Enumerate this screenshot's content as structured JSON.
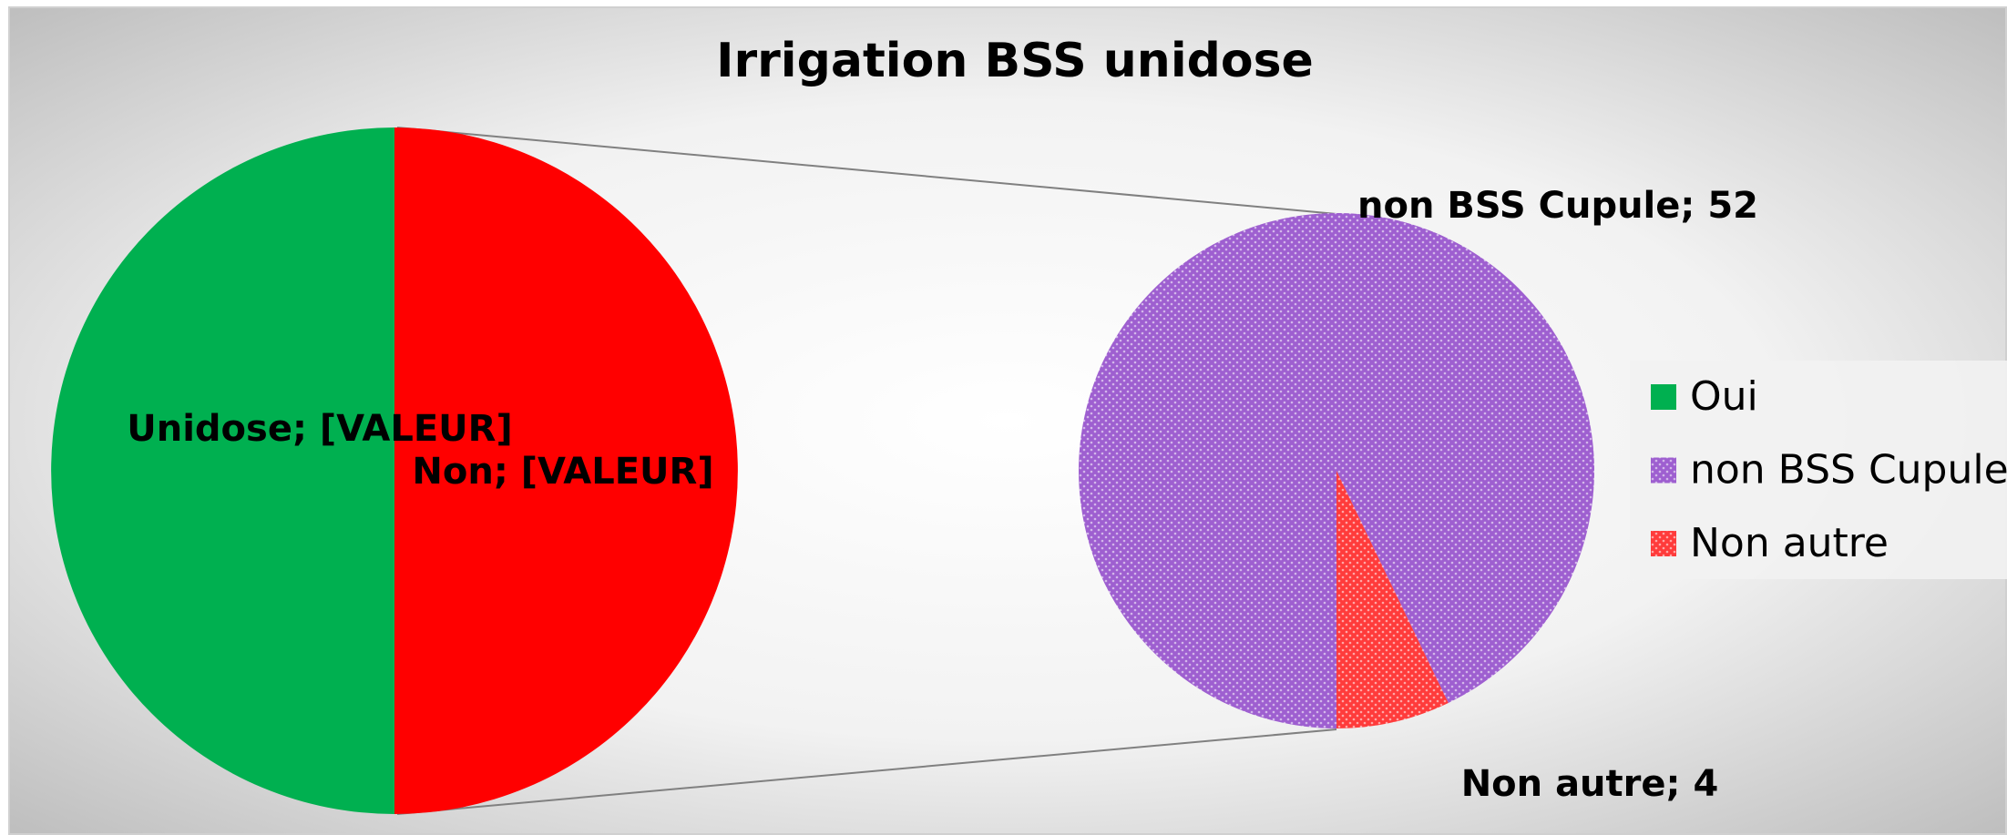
{
  "chart_data": {
    "type": "pie-of-pie",
    "title": "Irrigation BSS unidose",
    "label_separator": "; ",
    "main": {
      "categories": [
        "Unidose",
        "Non"
      ],
      "values": [
        56,
        56
      ],
      "value_labels": [
        "[VALEUR]",
        "[VALEUR]"
      ],
      "colors": [
        "#00b050",
        "#ff0000"
      ]
    },
    "secondary": {
      "categories": [
        "non BSS Cupule",
        "Non autre"
      ],
      "values": [
        52,
        4
      ],
      "colors": [
        "#9e5fd0",
        "#ff3b3b"
      ]
    },
    "legend": {
      "position": "right",
      "entries": [
        {
          "name": "Oui",
          "color": "#00b050"
        },
        {
          "name": "non BSS Cupule",
          "color": "#9e5fd0"
        },
        {
          "name": "Non autre",
          "color": "#ff3b3b"
        }
      ]
    }
  }
}
